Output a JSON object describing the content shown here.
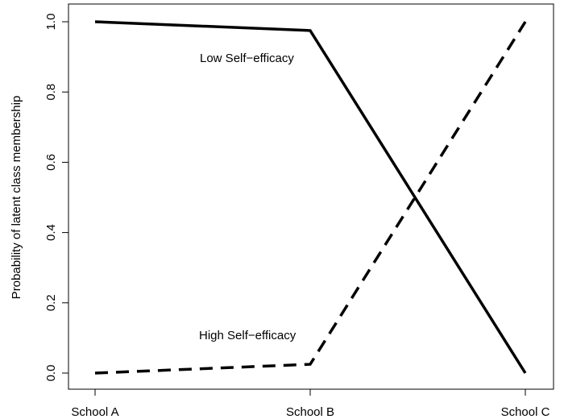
{
  "chart_data": {
    "type": "line",
    "title": "",
    "xlabel": "",
    "ylabel": "Probability of latent class membership",
    "categories": [
      "School A",
      "School B",
      "School C"
    ],
    "ylim": [
      0.0,
      1.0
    ],
    "yticks": [
      "0.0",
      "0.2",
      "0.4",
      "0.6",
      "0.8",
      "1.0"
    ],
    "grid": false,
    "series": [
      {
        "name": "Low Self−efficacy",
        "style": "solid",
        "color": "#000000",
        "values": [
          1.0,
          0.975,
          0.0
        ]
      },
      {
        "name": "High Self−efficacy",
        "style": "dashed",
        "color": "#000000",
        "values": [
          0.0,
          0.025,
          1.0
        ]
      }
    ],
    "annotations": {
      "low_label": "Low Self−efficacy",
      "high_label": "High Self−efficacy"
    }
  }
}
